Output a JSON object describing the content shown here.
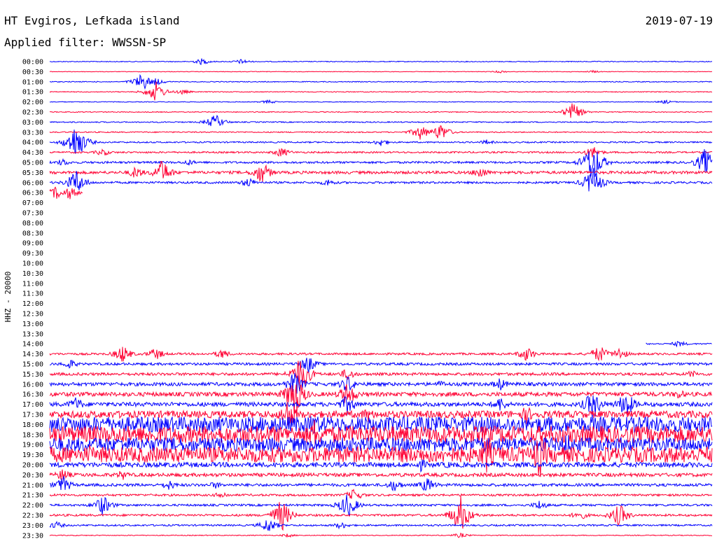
{
  "header": {
    "station": "HT Evgiros, Lefkada island",
    "date": "2019-07-19",
    "filter": "Applied filter: WWSSN-SP"
  },
  "chart_data": {
    "type": "line",
    "title": "HT Evgiros, Lefkada island",
    "ylabel": "HHZ - 20000",
    "row_labels": [
      "00:00",
      "00:30",
      "01:00",
      "01:30",
      "02:00",
      "02:30",
      "03:00",
      "03:30",
      "04:00",
      "04:30",
      "05:00",
      "05:30",
      "06:00",
      "06:30",
      "07:00",
      "07:30",
      "08:00",
      "08:30",
      "09:00",
      "09:30",
      "10:00",
      "10:30",
      "11:00",
      "11:30",
      "12:00",
      "12:30",
      "13:00",
      "13:30",
      "14:00",
      "14:30",
      "15:00",
      "15:30",
      "16:00",
      "16:30",
      "17:00",
      "17:30",
      "18:00",
      "18:30",
      "19:00",
      "19:30",
      "20:00",
      "20:30",
      "21:00",
      "21:30",
      "22:00",
      "22:30",
      "23:00",
      "23:30"
    ],
    "series_colors": [
      "#0000ff",
      "#ff0033"
    ],
    "row_data": {
      "00:00": {
        "noise": 0.6,
        "events": [
          [
            0.23,
            5
          ],
          [
            0.29,
            4
          ]
        ]
      },
      "00:30": {
        "noise": 0.4,
        "events": [
          [
            0.68,
            2
          ],
          [
            0.82,
            2
          ]
        ]
      },
      "01:00": {
        "noise": 0.6,
        "events": [
          [
            0.14,
            14
          ],
          [
            0.16,
            6
          ]
        ]
      },
      "01:30": {
        "noise": 0.6,
        "events": [
          [
            0.16,
            16
          ],
          [
            0.2,
            4
          ]
        ]
      },
      "02:00": {
        "noise": 0.5,
        "events": [
          [
            0.33,
            3
          ],
          [
            0.93,
            3
          ]
        ]
      },
      "02:30": {
        "noise": 0.6,
        "events": [
          [
            0.79,
            14
          ]
        ]
      },
      "03:00": {
        "noise": 0.8,
        "events": [
          [
            0.25,
            12
          ]
        ]
      },
      "03:30": {
        "noise": 0.8,
        "events": [
          [
            0.56,
            12
          ],
          [
            0.59,
            14
          ]
        ]
      },
      "04:00": {
        "noise": 1.0,
        "events": [
          [
            0.04,
            30
          ],
          [
            0.5,
            6
          ],
          [
            0.66,
            4
          ]
        ]
      },
      "04:30": {
        "noise": 1.2,
        "events": [
          [
            0.08,
            6
          ],
          [
            0.35,
            8
          ],
          [
            0.82,
            10
          ]
        ]
      },
      "05:00": {
        "noise": 1.5,
        "events": [
          [
            0.02,
            6
          ],
          [
            0.21,
            5
          ],
          [
            0.82,
            34
          ],
          [
            0.99,
            22
          ]
        ]
      },
      "05:30": {
        "noise": 2.0,
        "events": [
          [
            0.13,
            10
          ],
          [
            0.17,
            20
          ],
          [
            0.32,
            18
          ],
          [
            0.65,
            10
          ]
        ]
      },
      "06:00": {
        "noise": 1.5,
        "events": [
          [
            0.04,
            20
          ],
          [
            0.3,
            8
          ],
          [
            0.42,
            6
          ],
          [
            0.82,
            24
          ]
        ]
      },
      "06:30": {
        "noise": 3.0,
        "end": 0.05,
        "events": [
          [
            0.01,
            10
          ],
          [
            0.03,
            10
          ]
        ]
      },
      "14:00": {
        "noise": 1.0,
        "start": 0.9,
        "events": [
          [
            0.95,
            5
          ]
        ]
      },
      "14:30": {
        "noise": 1.5,
        "events": [
          [
            0.11,
            14
          ],
          [
            0.16,
            10
          ],
          [
            0.26,
            8
          ],
          [
            0.72,
            12
          ],
          [
            0.83,
            14
          ],
          [
            0.86,
            10
          ]
        ]
      },
      "15:00": {
        "noise": 1.8,
        "events": [
          [
            0.03,
            8
          ],
          [
            0.39,
            14
          ]
        ]
      },
      "15:30": {
        "noise": 2.0,
        "events": [
          [
            0.38,
            30
          ],
          [
            0.45,
            10
          ],
          [
            0.97,
            6
          ]
        ]
      },
      "16:00": {
        "noise": 2.5,
        "events": [
          [
            0.37,
            20
          ],
          [
            0.45,
            14
          ],
          [
            0.59,
            6
          ],
          [
            0.68,
            10
          ]
        ]
      },
      "16:30": {
        "noise": 3.0,
        "events": [
          [
            0.37,
            36
          ],
          [
            0.45,
            20
          ],
          [
            0.95,
            8
          ]
        ]
      },
      "17:00": {
        "noise": 3.0,
        "events": [
          [
            0.04,
            12
          ],
          [
            0.45,
            16
          ],
          [
            0.68,
            12
          ],
          [
            0.82,
            24
          ],
          [
            0.87,
            22
          ]
        ]
      },
      "17:30": {
        "noise": 5.0,
        "events": [
          [
            0.36,
            24
          ],
          [
            0.48,
            12
          ],
          [
            0.72,
            14
          ]
        ]
      },
      "18:00": {
        "noise": 11.0,
        "events": [
          [
            0.4,
            20
          ],
          [
            0.55,
            10
          ]
        ]
      },
      "18:30": {
        "noise": 12.0,
        "events": [
          [
            0.4,
            24
          ],
          [
            0.47,
            12
          ]
        ]
      },
      "19:00": {
        "noise": 10.0,
        "events": [
          [
            0.65,
            14
          ],
          [
            0.78,
            20
          ]
        ]
      },
      "19:30": {
        "noise": 11.0,
        "events": [
          [
            0.06,
            16
          ],
          [
            0.66,
            30
          ],
          [
            0.74,
            36
          ]
        ]
      },
      "20:00": {
        "noise": 3.5,
        "events": [
          [
            0.56,
            10
          ],
          [
            0.6,
            6
          ]
        ]
      },
      "20:30": {
        "noise": 2.5,
        "events": [
          [
            0.02,
            10
          ],
          [
            0.11,
            8
          ]
        ]
      },
      "21:00": {
        "noise": 2.0,
        "events": [
          [
            0.02,
            14
          ],
          [
            0.18,
            8
          ],
          [
            0.25,
            6
          ],
          [
            0.52,
            10
          ],
          [
            0.57,
            12
          ]
        ]
      },
      "21:30": {
        "noise": 1.5,
        "events": [
          [
            0.26,
            6
          ],
          [
            0.46,
            10
          ]
        ]
      },
      "22:00": {
        "noise": 1.5,
        "events": [
          [
            0.08,
            16
          ],
          [
            0.45,
            20
          ],
          [
            0.74,
            8
          ]
        ]
      },
      "22:30": {
        "noise": 1.5,
        "events": [
          [
            0.35,
            26
          ],
          [
            0.62,
            30
          ],
          [
            0.8,
            8
          ],
          [
            0.86,
            18
          ]
        ]
      },
      "23:00": {
        "noise": 1.2,
        "events": [
          [
            0.01,
            6
          ],
          [
            0.33,
            12
          ],
          [
            0.44,
            6
          ]
        ]
      },
      "23:30": {
        "noise": 0.6,
        "events": [
          [
            0.36,
            3
          ],
          [
            0.62,
            4
          ]
        ]
      }
    }
  }
}
